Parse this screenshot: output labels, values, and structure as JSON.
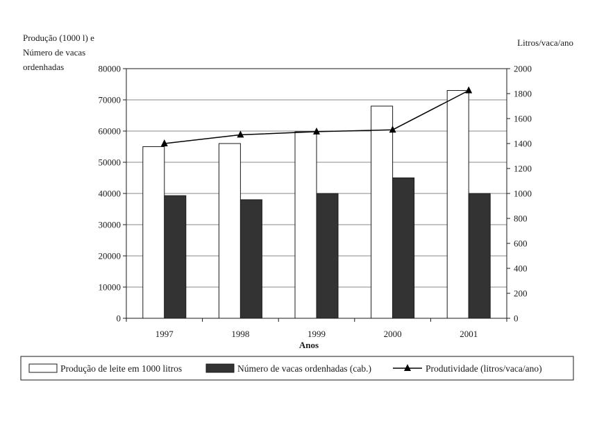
{
  "chart_data": {
    "type": "bar",
    "xlabel": "Anos",
    "ylabel_left": [
      "Produção (1000 l) e",
      "Número de vacas",
      "ordenhadas"
    ],
    "ylabel_right": "Litros/vaca/ano",
    "categories": [
      "1997",
      "1998",
      "1999",
      "2000",
      "2001"
    ],
    "ylim_left": [
      0,
      80000
    ],
    "yticks_left": [
      0,
      10000,
      20000,
      30000,
      40000,
      50000,
      60000,
      70000,
      80000
    ],
    "ylim_right": [
      0,
      2000
    ],
    "yticks_right": [
      0,
      200,
      400,
      600,
      800,
      1000,
      1200,
      1400,
      1600,
      1800,
      2000
    ],
    "grid": "horizontal",
    "legend_position": "bottom",
    "series": [
      {
        "name": "Produção de leite em 1000 litros",
        "type": "bar",
        "axis": "left",
        "color": "#ffffff",
        "values": [
          55000,
          56000,
          59800,
          68000,
          73000
        ]
      },
      {
        "name": "Número de vacas ordenhadas (cab.)",
        "type": "bar",
        "axis": "left",
        "color": "#333333",
        "values": [
          39300,
          38000,
          40000,
          45000,
          40000
        ]
      },
      {
        "name": "Produtividade (litros/vaca/ano)",
        "type": "line",
        "axis": "right",
        "color": "#000000",
        "marker": "triangle",
        "values": [
          1400,
          1470,
          1495,
          1510,
          1825
        ]
      }
    ]
  }
}
